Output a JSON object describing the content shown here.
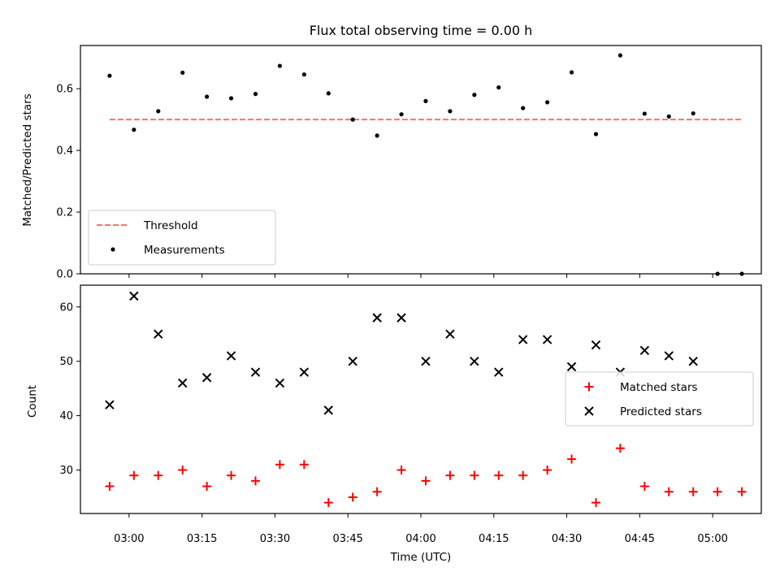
{
  "chart_data": [
    {
      "type": "scatter",
      "title": "Flux total observing time = 0.00 h",
      "ylabel": "Matched/Predicted stars",
      "xlabel": "",
      "xlim": [
        "02:50",
        "05:10"
      ],
      "ylim": [
        0,
        0.74
      ],
      "yticks": [
        0.0,
        0.2,
        0.4,
        0.6
      ],
      "ytick_labels": [
        "0.0",
        "0.2",
        "0.4",
        "0.6"
      ],
      "grid": false,
      "legend_position": "lower-left",
      "threshold": {
        "name": "Threshold",
        "value": 0.5,
        "x_start": "02:56",
        "x_end": "05:06",
        "color": "#ff7070",
        "style": "dashed"
      },
      "series": [
        {
          "name": "Measurements",
          "marker": "dot",
          "color": "#000000",
          "points": [
            [
              "02:56",
              0.642
            ],
            [
              "03:01",
              0.467
            ],
            [
              "03:06",
              0.527
            ],
            [
              "03:11",
              0.652
            ],
            [
              "03:16",
              0.574
            ],
            [
              "03:21",
              0.569
            ],
            [
              "03:26",
              0.583
            ],
            [
              "03:31",
              0.674
            ],
            [
              "03:36",
              0.646
            ],
            [
              "03:41",
              0.585
            ],
            [
              "03:46",
              0.5
            ],
            [
              "03:51",
              0.448
            ],
            [
              "03:56",
              0.517
            ],
            [
              "04:01",
              0.56
            ],
            [
              "04:06",
              0.527
            ],
            [
              "04:11",
              0.58
            ],
            [
              "04:16",
              0.604
            ],
            [
              "04:21",
              0.537
            ],
            [
              "04:26",
              0.556
            ],
            [
              "04:31",
              0.653
            ],
            [
              "04:36",
              0.453
            ],
            [
              "04:41",
              0.708
            ],
            [
              "04:46",
              0.519
            ],
            [
              "04:51",
              0.51
            ],
            [
              "04:56",
              0.52
            ],
            [
              "05:01",
              0.0
            ],
            [
              "05:06",
              0.0
            ]
          ]
        }
      ]
    },
    {
      "type": "scatter",
      "title": "",
      "xlabel": "Time (UTC)",
      "ylabel": "Count",
      "xlim": [
        "02:50",
        "05:10"
      ],
      "xticks": [
        "03:00",
        "03:15",
        "03:30",
        "03:45",
        "04:00",
        "04:15",
        "04:30",
        "04:45",
        "05:00"
      ],
      "ylim": [
        22,
        64
      ],
      "yticks": [
        30,
        40,
        50,
        60
      ],
      "ytick_labels": [
        "30",
        "40",
        "50",
        "60"
      ],
      "grid": false,
      "legend_position": "center-right",
      "series": [
        {
          "name": "Matched stars",
          "marker": "plus",
          "color": "#ff0000",
          "points": [
            [
              "02:56",
              27
            ],
            [
              "03:01",
              29
            ],
            [
              "03:06",
              29
            ],
            [
              "03:11",
              30
            ],
            [
              "03:16",
              27
            ],
            [
              "03:21",
              29
            ],
            [
              "03:26",
              28
            ],
            [
              "03:31",
              31
            ],
            [
              "03:36",
              31
            ],
            [
              "03:41",
              24
            ],
            [
              "03:46",
              25
            ],
            [
              "03:51",
              26
            ],
            [
              "03:56",
              30
            ],
            [
              "04:01",
              28
            ],
            [
              "04:06",
              29
            ],
            [
              "04:11",
              29
            ],
            [
              "04:16",
              29
            ],
            [
              "04:21",
              29
            ],
            [
              "04:26",
              30
            ],
            [
              "04:31",
              32
            ],
            [
              "04:36",
              24
            ],
            [
              "04:41",
              34
            ],
            [
              "04:46",
              27
            ],
            [
              "04:51",
              26
            ],
            [
              "04:56",
              26
            ],
            [
              "05:01",
              26
            ],
            [
              "05:06",
              26
            ]
          ]
        },
        {
          "name": "Predicted stars",
          "marker": "x",
          "color": "#000000",
          "points": [
            [
              "02:56",
              42
            ],
            [
              "03:01",
              62
            ],
            [
              "03:06",
              55
            ],
            [
              "03:11",
              46
            ],
            [
              "03:16",
              47
            ],
            [
              "03:21",
              51
            ],
            [
              "03:26",
              48
            ],
            [
              "03:31",
              46
            ],
            [
              "03:36",
              48
            ],
            [
              "03:41",
              41
            ],
            [
              "03:46",
              50
            ],
            [
              "03:51",
              58
            ],
            [
              "03:56",
              58
            ],
            [
              "04:01",
              50
            ],
            [
              "04:06",
              55
            ],
            [
              "04:11",
              50
            ],
            [
              "04:16",
              48
            ],
            [
              "04:21",
              54
            ],
            [
              "04:26",
              54
            ],
            [
              "04:31",
              49
            ],
            [
              "04:36",
              53
            ],
            [
              "04:41",
              48
            ],
            [
              "04:46",
              52
            ],
            [
              "04:51",
              51
            ],
            [
              "04:56",
              50
            ]
          ]
        }
      ]
    }
  ]
}
